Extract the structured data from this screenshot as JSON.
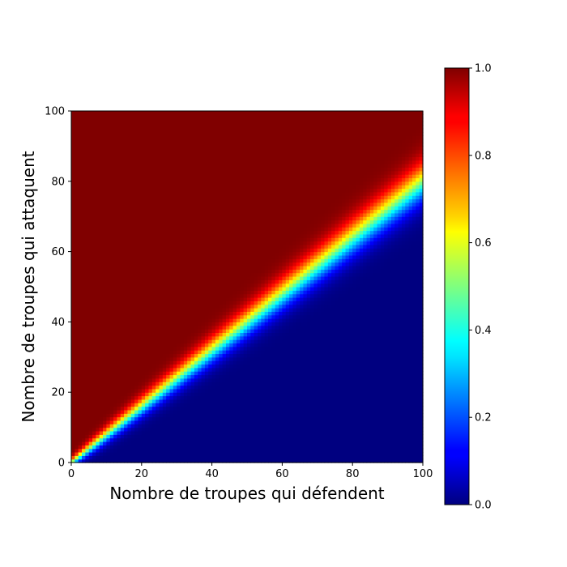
{
  "chart_data": {
    "type": "heatmap",
    "title": "",
    "xlabel": "Nombre de troupes qui défendent",
    "ylabel": "Nombre de troupes qui attaquent",
    "x_range": [
      0,
      100
    ],
    "y_range": [
      0,
      100
    ],
    "grid_cells": 100,
    "x_ticks": [
      0,
      20,
      40,
      60,
      80,
      100
    ],
    "y_ticks": [
      0,
      20,
      40,
      60,
      80,
      100
    ],
    "colorbar": {
      "range": [
        0.0,
        1.0
      ],
      "ticks": [
        "0.0",
        "0.2",
        "0.4",
        "0.6",
        "0.8",
        "1.0"
      ],
      "colormap": "jet",
      "placement": "right"
    },
    "value_function": {
      "description": "Probability that the attacker wins; ~0.5 along the line attackers ≈ 0.8 × defenders, rising toward 1.0 in the upper-left and falling toward 0.0 in the lower-right",
      "midline_slope": 0.8
    }
  }
}
